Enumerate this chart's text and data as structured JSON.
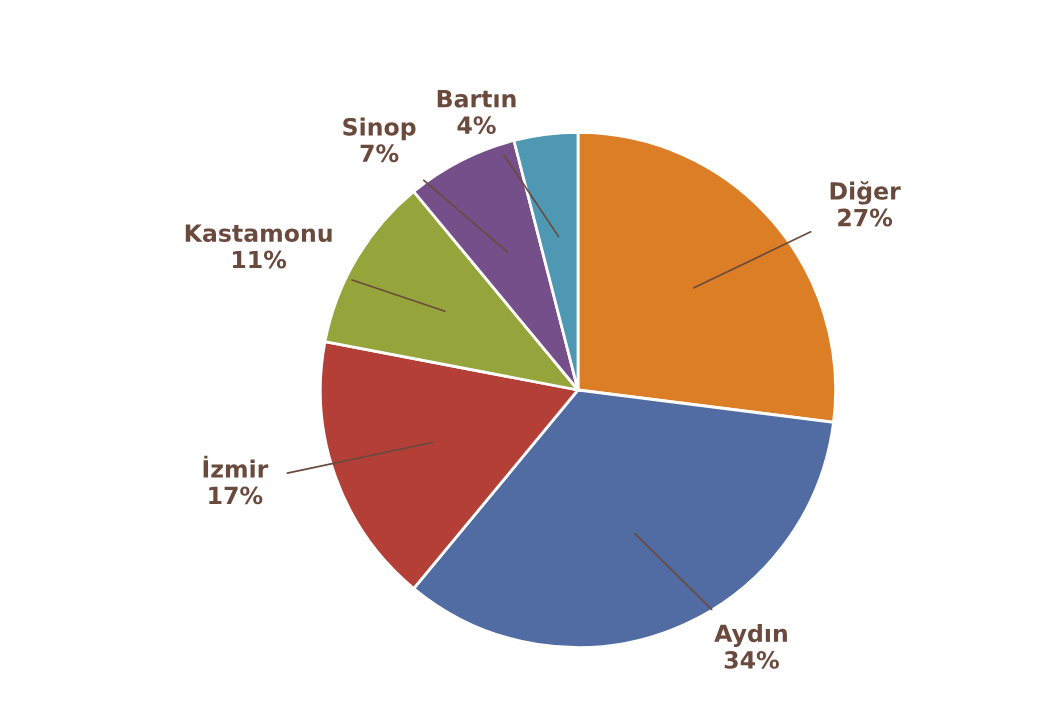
{
  "chart_data": {
    "type": "pie",
    "categories": [
      "Diğer",
      "Aydın",
      "İzmir",
      "Kastamonu",
      "Sinop",
      "Bartın"
    ],
    "values": [
      27,
      34,
      17,
      11,
      7,
      4
    ],
    "value_labels": [
      "27%",
      "34%",
      "17%",
      "11%",
      "7%",
      "4%"
    ],
    "colors": [
      "#dc7e26",
      "#516ba3",
      "#b33f37",
      "#95a53b",
      "#754f8a",
      "#4f98b3"
    ],
    "legend": false
  }
}
